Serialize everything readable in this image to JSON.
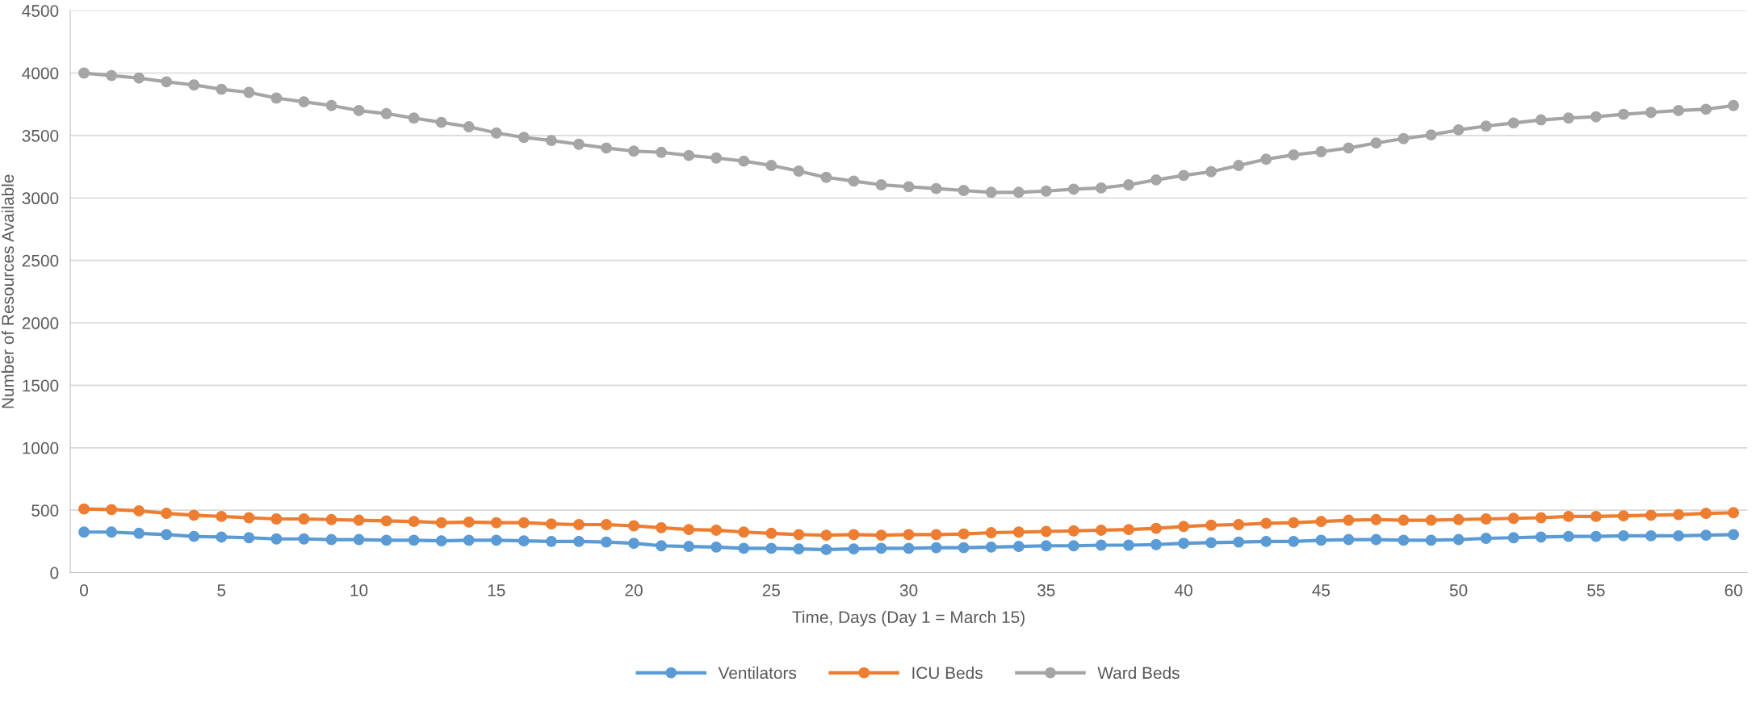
{
  "chart_data": {
    "type": "line",
    "xlabel": "Time, Days (Day 1 = March 15)",
    "ylabel": "Number of Resources Available",
    "x": [
      0,
      1,
      2,
      3,
      4,
      5,
      6,
      7,
      8,
      9,
      10,
      11,
      12,
      13,
      14,
      15,
      16,
      17,
      18,
      19,
      20,
      21,
      22,
      23,
      24,
      25,
      26,
      27,
      28,
      29,
      30,
      31,
      32,
      33,
      34,
      35,
      36,
      37,
      38,
      39,
      40,
      41,
      42,
      43,
      44,
      45,
      46,
      47,
      48,
      49,
      50,
      51,
      52,
      53,
      54,
      55,
      56,
      57,
      58,
      59,
      60
    ],
    "series": [
      {
        "name": "Ventilators",
        "color": "#5b9bd5",
        "values": [
          325,
          325,
          315,
          305,
          290,
          285,
          280,
          270,
          270,
          265,
          265,
          260,
          260,
          255,
          260,
          260,
          255,
          250,
          250,
          245,
          235,
          215,
          210,
          205,
          195,
          195,
          190,
          185,
          190,
          195,
          195,
          200,
          200,
          205,
          210,
          215,
          215,
          220,
          220,
          225,
          235,
          240,
          245,
          250,
          250,
          260,
          265,
          265,
          260,
          260,
          265,
          275,
          280,
          285,
          290,
          290,
          295,
          295,
          295,
          300,
          305
        ]
      },
      {
        "name": "ICU Beds",
        "color": "#ed7d31",
        "values": [
          510,
          505,
          495,
          475,
          460,
          450,
          440,
          430,
          430,
          425,
          420,
          415,
          410,
          400,
          405,
          400,
          400,
          390,
          385,
          385,
          375,
          360,
          345,
          340,
          325,
          315,
          305,
          300,
          305,
          300,
          305,
          305,
          310,
          320,
          325,
          330,
          335,
          340,
          345,
          355,
          370,
          380,
          385,
          395,
          400,
          410,
          420,
          425,
          420,
          420,
          425,
          430,
          435,
          440,
          450,
          450,
          455,
          460,
          465,
          475,
          480
        ]
      },
      {
        "name": "Ward Beds",
        "color": "#a5a5a5",
        "values": [
          4000,
          3980,
          3960,
          3930,
          3905,
          3870,
          3845,
          3800,
          3770,
          3740,
          3700,
          3675,
          3640,
          3605,
          3570,
          3520,
          3485,
          3460,
          3430,
          3400,
          3375,
          3365,
          3340,
          3320,
          3295,
          3260,
          3215,
          3165,
          3135,
          3105,
          3090,
          3075,
          3060,
          3045,
          3045,
          3055,
          3070,
          3080,
          3105,
          3145,
          3180,
          3210,
          3260,
          3310,
          3345,
          3370,
          3400,
          3440,
          3475,
          3505,
          3545,
          3575,
          3600,
          3625,
          3640,
          3650,
          3670,
          3685,
          3700,
          3710,
          3740
        ]
      }
    ],
    "xlim": [
      -0.5,
      60.5
    ],
    "xticks": [
      0,
      5,
      10,
      15,
      20,
      25,
      30,
      35,
      40,
      45,
      50,
      55,
      60
    ],
    "ylim": [
      0,
      4500
    ],
    "yticks": [
      0,
      500,
      1000,
      1500,
      2000,
      2500,
      3000,
      3500,
      4000,
      4500
    ],
    "grid": "y",
    "legend": "bottom",
    "marker": "circle",
    "line_style": "solid"
  }
}
